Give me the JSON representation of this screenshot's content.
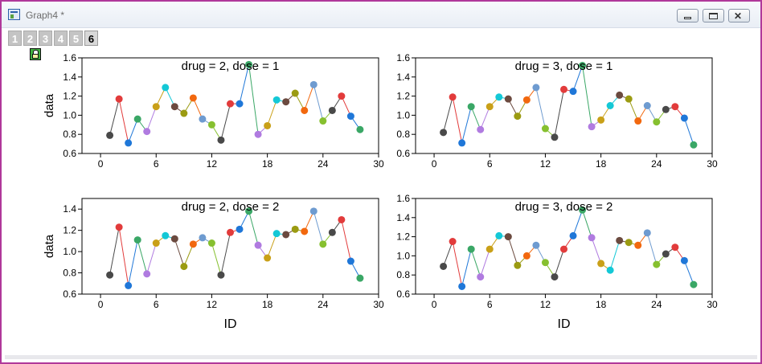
{
  "window": {
    "title": "Graph4 *"
  },
  "tabs": [
    "1",
    "2",
    "3",
    "4",
    "5",
    "6"
  ],
  "active_tab": "6",
  "chart_data": [
    {
      "type": "line",
      "title": "drug = 2, dose = 1",
      "xlabel": "",
      "ylabel": "data",
      "xlim": [
        -2,
        30
      ],
      "ylim": [
        0.6,
        1.6
      ],
      "xticks": [
        "0",
        "6",
        "12",
        "18",
        "24",
        "30"
      ],
      "yticks": [
        "0.6",
        "0.8",
        "1.0",
        "1.2",
        "1.4",
        "1.6"
      ],
      "x": [
        1,
        2,
        3,
        4,
        5,
        6,
        7,
        8,
        9,
        10,
        11,
        12,
        13,
        14,
        15,
        16,
        17,
        18,
        19,
        20,
        21,
        22,
        23,
        24,
        25,
        26,
        27,
        28
      ],
      "values": [
        0.79,
        1.17,
        0.71,
        0.96,
        0.83,
        1.09,
        1.29,
        1.09,
        1.02,
        1.18,
        0.96,
        0.9,
        0.74,
        1.12,
        1.12,
        1.53,
        0.8,
        0.89,
        1.16,
        1.14,
        1.23,
        1.05,
        1.32,
        0.94,
        1.05,
        1.2,
        0.99,
        0.85
      ]
    },
    {
      "type": "line",
      "title": "drug = 3, dose = 1",
      "xlabel": "",
      "ylabel": "",
      "xlim": [
        -2,
        30
      ],
      "ylim": [
        0.6,
        1.6
      ],
      "xticks": [
        "0",
        "6",
        "12",
        "18",
        "24",
        "30"
      ],
      "yticks": [
        "0.6",
        "0.8",
        "1.0",
        "1.2",
        "1.4",
        "1.6"
      ],
      "x": [
        1,
        2,
        3,
        4,
        5,
        6,
        7,
        8,
        9,
        10,
        11,
        12,
        13,
        14,
        15,
        16,
        17,
        18,
        19,
        20,
        21,
        22,
        23,
        24,
        25,
        26,
        27,
        28
      ],
      "values": [
        0.82,
        1.19,
        0.71,
        1.09,
        0.85,
        1.09,
        1.19,
        1.17,
        0.99,
        1.16,
        1.29,
        0.86,
        0.77,
        1.27,
        1.25,
        1.52,
        0.88,
        0.95,
        1.1,
        1.21,
        1.17,
        0.94,
        1.1,
        0.93,
        1.06,
        1.09,
        0.97,
        0.69
      ]
    },
    {
      "type": "line",
      "title": "drug = 2, dose = 2",
      "xlabel": "ID",
      "ylabel": "data",
      "xlim": [
        -2,
        30
      ],
      "ylim": [
        0.6,
        1.5
      ],
      "xticks": [
        "0",
        "6",
        "12",
        "18",
        "24",
        "30"
      ],
      "yticks": [
        "0.6",
        "0.8",
        "1.0",
        "1.2",
        "1.4"
      ],
      "x": [
        1,
        2,
        3,
        4,
        5,
        6,
        7,
        8,
        9,
        10,
        11,
        12,
        13,
        14,
        15,
        16,
        17,
        18,
        19,
        20,
        21,
        22,
        23,
        24,
        25,
        26,
        27,
        28
      ],
      "values": [
        0.78,
        1.23,
        0.68,
        1.11,
        0.79,
        1.08,
        1.15,
        1.12,
        0.86,
        1.07,
        1.13,
        1.08,
        0.78,
        1.18,
        1.21,
        1.38,
        1.06,
        0.94,
        1.17,
        1.16,
        1.21,
        1.19,
        1.38,
        1.07,
        1.18,
        1.3,
        0.91,
        0.75
      ]
    },
    {
      "type": "line",
      "title": "drug = 3, dose = 2",
      "xlabel": "ID",
      "ylabel": "",
      "xlim": [
        -2,
        30
      ],
      "ylim": [
        0.6,
        1.6
      ],
      "xticks": [
        "0",
        "6",
        "12",
        "18",
        "24",
        "30"
      ],
      "yticks": [
        "0.6",
        "0.8",
        "1.0",
        "1.2",
        "1.4",
        "1.6"
      ],
      "x": [
        1,
        2,
        3,
        4,
        5,
        6,
        7,
        8,
        9,
        10,
        11,
        12,
        13,
        14,
        15,
        16,
        17,
        18,
        19,
        20,
        21,
        22,
        23,
        24,
        25,
        26,
        27,
        28
      ],
      "values": [
        0.89,
        1.15,
        0.68,
        1.07,
        0.78,
        1.07,
        1.21,
        1.2,
        0.9,
        1.0,
        1.11,
        0.93,
        0.78,
        1.07,
        1.21,
        1.48,
        1.19,
        0.92,
        0.85,
        1.16,
        1.14,
        1.11,
        1.24,
        0.91,
        1.02,
        1.09,
        0.95,
        0.7
      ]
    }
  ],
  "palette": [
    "#494949",
    "#e23b3b",
    "#1f77d8",
    "#3aa766",
    "#b07be0",
    "#c9a018",
    "#14c8d6",
    "#6b4a3f",
    "#9b9b12",
    "#f2680e",
    "#6e9bd0",
    "#86c02f"
  ]
}
